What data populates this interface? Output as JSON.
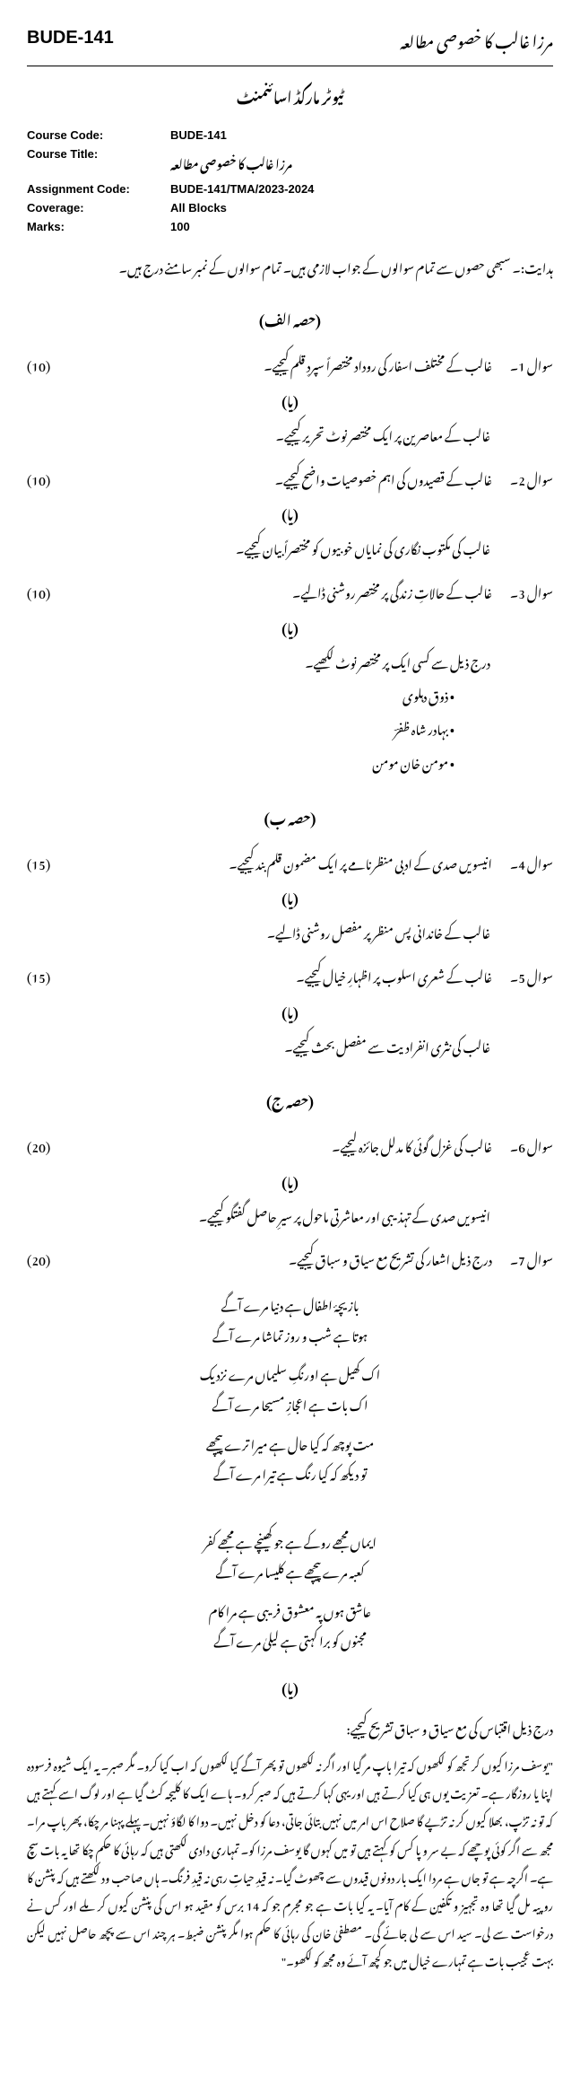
{
  "header": {
    "code": "BUDE-141",
    "title_ur": "مرزا غالب کا خصوصی مطالعہ"
  },
  "subtitle": "ٹیوٹر مارکڈ اسائنمنٹ",
  "meta": [
    {
      "label": "Course Code:",
      "value": "BUDE-141"
    },
    {
      "label": "Course Title:",
      "value_ur": "مرزا غالب کا خصوصی مطالعہ"
    },
    {
      "label": "Assignment Code:",
      "value": "BUDE-141/TMA/2023-2024"
    },
    {
      "label": "Coverage:",
      "value": "All Blocks"
    },
    {
      "label": "Marks:",
      "value": "100"
    }
  ],
  "instruction": "ہدایت:۔ سبھی حصوں سے تمام سوالوں کے جواب لازمی ہیں۔ تمام سوالوں کے نمبر سامنے درج ہیں۔",
  "sections": [
    {
      "heading": "(حصہ الف)",
      "questions": [
        {
          "no": "سوال 1۔",
          "text": "غالب کے مختلف اسفار کی روداد مختصراً سپردِ قلم کیجیے۔",
          "marks": "(10)",
          "ya": "(یا)",
          "alt": "غالب کے معاصرین پر ایک مختصر نوٹ تحریر کیجیے۔"
        },
        {
          "no": "سوال 2۔",
          "text": "غالب کے قصیدوں کی اہم خصوصیات واضح کیجیے۔",
          "marks": "(10)",
          "ya": "(یا)",
          "alt": "غالب کی مکتوب نگاری کی نمایاں خوبیوں کو مختصراً بیان کیجیے۔"
        },
        {
          "no": "سوال 3۔",
          "text": "غالب کے حالاتِ زندگی پر مختصر روشنی ڈالیے۔",
          "marks": "(10)",
          "ya": "(یا)",
          "alt": "درج ذیل سے کسی ایک پر مختصر نوٹ لکھیے۔",
          "bullets": [
            "• ذوق دہلوی",
            "• بہادر شاہ ظفرؔ",
            "• مومن خان مومن"
          ]
        }
      ]
    },
    {
      "heading": "(حصہ ب)",
      "questions": [
        {
          "no": "سوال 4۔",
          "text": "انیسویں صدی کے ادبی منظرنامے پر ایک مضمون قلم بند کیجیے۔",
          "marks": "(15)",
          "ya": "(یا)",
          "alt": "غالب کے خاندانی پس منظر پر مفصل روشنی ڈالیے۔"
        },
        {
          "no": "سوال 5۔",
          "text": "غالب کے شعری اسلوب پر اظہارِ خیال کیجیے۔",
          "marks": "(15)",
          "ya": "(یا)",
          "alt": "غالب کی نثری انفرادیت سے مفصل بحث کیجیے۔"
        }
      ]
    },
    {
      "heading": "(حصہ ج)",
      "questions": [
        {
          "no": "سوال 6۔",
          "text": "غالب کی غزل گوئی کا مدلل جائزہ لیجیے۔",
          "marks": "(20)",
          "ya": "(یا)",
          "alt": "انیسویں صدی کے تہذیبی اور معاشرتی ماحول پر سیرِ حاصل گفتگو کیجیے۔"
        },
        {
          "no": "سوال 7۔",
          "text": "درج ذیل اشعار کی تشریح مع سیاق و سباق کیجیے۔",
          "marks": "(20)",
          "couplets": [
            {
              "l1": "بازیچۂ اطفال ہے دنیا مرے آگے",
              "l2": "ہوتا ہے شب و روز تماشا مرے آگے"
            },
            {
              "l1": "اک کھیل ہے اورنگِ سلیماں مرے نزدیک",
              "l2": "اک بات ہے اعجازِ مسیحا مرے آگے"
            },
            {
              "l1": "مت پوچھ کہ کیا حال ہے میرا ترے پیچھے",
              "l2": "تو دیکھ کہ کیا رنگ ہے تیرا مرے آگے"
            }
          ],
          "couplets2": [
            {
              "l1": "ایماں مجھے روکے ہے جو کھینچے ہے مجھے کفر",
              "l2": "کعبہ مرے پیچھے ہے کلیسا مرے آگے"
            },
            {
              "l1": "عاشق ہوں پہ معشوق فریبی ہے مرا کام",
              "l2": "مجنوں کو برا کہتی ہے لیلیٰ مرے آگے"
            }
          ],
          "ya": "(یا)",
          "passage_head": "درج ذیل اقتباس کی مع سیاق و سباق تشریح کیجیے:",
          "passage": "\"یوسف مرزا کیوں کر تجھ کو لکھوں کہ تیرا باپ مر گیا اور اگر نہ لکھوں تو پھر آگے کیا لکھوں کہ اب کیا کرو۔ مگر صبر۔ یہ ایک شیوہ فرسودہ اپنا یا روزگار ہے۔ تعزیت یوں ہی کیا کرتے ہیں اور یہی کہا کرتے ہیں کہ صبر کرو۔ ہاے ایک کا کلیجہ کٹ گیا ہے اور لوگ اسے کہتے ہیں کہ تو نہ تڑپ، بھلا کیوں کر نہ تڑپے گا صلاح اس امر میں نہیں بتائی جاتی، دعا کو دخل نہیں۔ دوا کا لگاؤ نہیں۔ پہلے پہنا مر چکا، پھر باپ مرا۔ مجھ سے اگر کوئی پوچھے کہ بے سر و پا کس کو کہتے ہیں تو میں کہوں گا یوسف مرزا کو۔ تمہاری دادی لکھتی ہیں کہ رہائی کا حکم چکا تھا یہ بات سچ ہے۔ اگرچہ ہے تو جاں ہے مردا ایک بار دونوں قیدوں سے چھوٹ گیا۔ نہ قیدِ حیاتِ رہی نہ قیدِ فرنگ۔ ہاں صاحب ود لکھتے ہیں کہ پنشن کا روپیہ مل گیا تھا وہ تجہیز و تکفین کے کام آیا۔ یہ کیا بات ہے جو مجرم جو کہ 14 برس کو مقید ہو اس کی پنشن کیوں کر ملے اور کس نے درخواست سے لی۔ سید اس سے لی جائے گی۔ مصطفیٰ خان کی رہائی کا حکم ہوا مگر پنشن ضبط۔ ہر چند اس سے پچھ حاصل نہیں لیکن بہت عجیب بات ہے تمہارے خیال میں جو کچھ آئے وہ مجھ کو لکھو۔\""
        }
      ]
    }
  ]
}
